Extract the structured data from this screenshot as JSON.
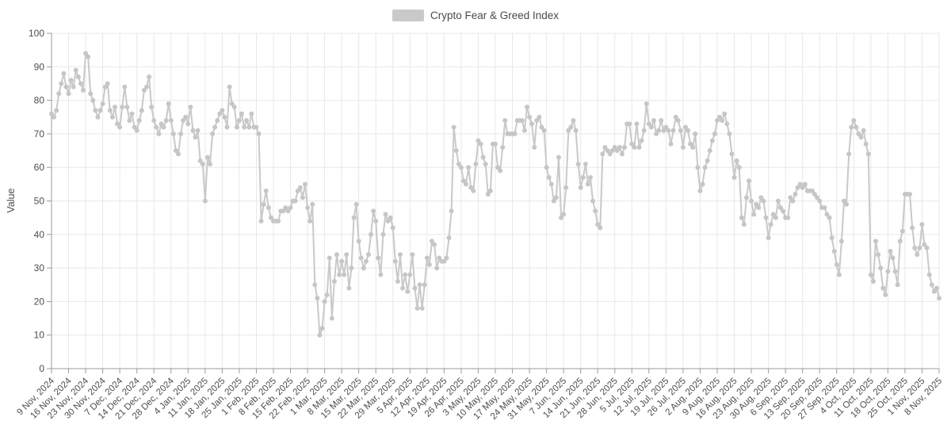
{
  "legend": {
    "label": "Crypto Fear & Greed Index",
    "swatch_color": "#c9c9c9"
  },
  "chart_data": {
    "type": "line",
    "title": "Crypto Fear & Greed Index",
    "series_name": "Crypto Fear & Greed Index",
    "xlabel": "",
    "ylabel": "Value",
    "ylim": [
      0,
      100
    ],
    "grid": true,
    "legend_position": "top-center",
    "y_ticks": [
      0,
      10,
      20,
      30,
      40,
      50,
      60,
      70,
      80,
      90,
      100
    ],
    "x_tick_every_days": 7,
    "x_tick_labels": [
      "9 Nov, 2024",
      "16 Nov, 2024",
      "23 Nov, 2024",
      "30 Nov, 2024",
      "7 Dec, 2024",
      "14 Dec, 2024",
      "21 Dec, 2024",
      "28 Dec, 2024",
      "4 Jan, 2025",
      "11 Jan, 2025",
      "18 Jan, 2025",
      "25 Jan, 2025",
      "1 Feb, 2025",
      "8 Feb, 2025",
      "15 Feb, 2025",
      "22 Feb, 2025",
      "1 Mar, 2025",
      "8 Mar, 2025",
      "15 Mar, 2025",
      "22 Mar, 2025",
      "29 Mar, 2025",
      "5 Apr, 2025",
      "12 Apr, 2025",
      "19 Apr, 2025",
      "26 Apr, 2025",
      "3 May, 2025",
      "10 May, 2025",
      "17 May, 2025",
      "24 May, 2025",
      "31 May, 2025",
      "7 Jun, 2025",
      "14 Jun, 2025",
      "21 Jun, 2025",
      "28 Jun, 2025",
      "5 Jul, 2025",
      "12 Jul, 2025",
      "19 Jul, 2025",
      "26 Jul, 2025",
      "2 Aug, 2025",
      "9 Aug, 2025",
      "16 Aug, 2025",
      "23 Aug, 2025",
      "30 Aug, 2025",
      "6 Sep, 2025",
      "13 Sep, 2025",
      "20 Sep, 2025",
      "27 Sep, 2025",
      "4 Oct, 2025",
      "11 Oct, 2025",
      "18 Oct, 2025",
      "25 Oct, 2025",
      "1 Nov, 2025",
      "8 Nov, 2025"
    ],
    "values": [
      76,
      75,
      77,
      82,
      85,
      88,
      84,
      82,
      86,
      84,
      89,
      87,
      85,
      83,
      94,
      93,
      82,
      80,
      77,
      75,
      77,
      79,
      84,
      85,
      77,
      75,
      78,
      73,
      72,
      78,
      84,
      78,
      74,
      76,
      72,
      71,
      74,
      77,
      83,
      84,
      87,
      78,
      74,
      72,
      70,
      73,
      72,
      74,
      79,
      74,
      70,
      65,
      64,
      70,
      74,
      75,
      73,
      78,
      71,
      69,
      71,
      62,
      61,
      50,
      63,
      61,
      70,
      72,
      74,
      76,
      77,
      75,
      72,
      84,
      79,
      78,
      72,
      74,
      76,
      72,
      74,
      72,
      76,
      72,
      72,
      70,
      44,
      49,
      53,
      48,
      45,
      44,
      44,
      44,
      47,
      47,
      48,
      47,
      48,
      50,
      50,
      53,
      54,
      51,
      55,
      48,
      44,
      49,
      25,
      21,
      10,
      12,
      20,
      22,
      33,
      15,
      26,
      34,
      28,
      32,
      28,
      34,
      24,
      30,
      45,
      49,
      38,
      33,
      30,
      32,
      34,
      40,
      47,
      44,
      33,
      28,
      40,
      46,
      44,
      45,
      42,
      32,
      26,
      34,
      24,
      28,
      23,
      28,
      34,
      24,
      18,
      25,
      18,
      25,
      33,
      31,
      38,
      37,
      30,
      33,
      32,
      32,
      33,
      39,
      47,
      72,
      65,
      61,
      60,
      56,
      55,
      60,
      54,
      53,
      61,
      68,
      67,
      63,
      61,
      52,
      53,
      67,
      67,
      60,
      59,
      66,
      74,
      70,
      70,
      70,
      70,
      74,
      74,
      74,
      71,
      78,
      75,
      73,
      66,
      74,
      75,
      72,
      71,
      60,
      57,
      55,
      50,
      51,
      63,
      45,
      46,
      54,
      71,
      72,
      74,
      71,
      61,
      54,
      57,
      61,
      55,
      57,
      50,
      47,
      43,
      42,
      64,
      66,
      65,
      64,
      65,
      66,
      65,
      66,
      64,
      66,
      73,
      73,
      67,
      66,
      73,
      66,
      68,
      71,
      79,
      73,
      72,
      74,
      70,
      71,
      74,
      71,
      72,
      71,
      67,
      71,
      75,
      74,
      71,
      66,
      72,
      71,
      67,
      66,
      70,
      60,
      53,
      55,
      60,
      62,
      65,
      68,
      70,
      74,
      75,
      74,
      76,
      73,
      70,
      64,
      57,
      62,
      60,
      45,
      43,
      51,
      56,
      50,
      46,
      49,
      48,
      51,
      50,
      45,
      39,
      43,
      46,
      45,
      50,
      48,
      47,
      45,
      45,
      51,
      50,
      52,
      54,
      55,
      54,
      55,
      53,
      53,
      53,
      52,
      51,
      50,
      48,
      48,
      46,
      45,
      39,
      35,
      31,
      28,
      38,
      50,
      49,
      64,
      72,
      74,
      72,
      70,
      69,
      71,
      67,
      64,
      28,
      26,
      38,
      34,
      30,
      24,
      22,
      29,
      35,
      33,
      29,
      25,
      38,
      41,
      52,
      52,
      52,
      42,
      36,
      34,
      36,
      43,
      37,
      36,
      28,
      25,
      23,
      24,
      21
    ],
    "colors": {
      "line": "#c9c9c9",
      "marker": "#c6c6c6",
      "grid": "#e8e8e8",
      "axis": "#9b9b9b",
      "tick_label": "#4d4d4d",
      "background": "#ffffff"
    }
  }
}
